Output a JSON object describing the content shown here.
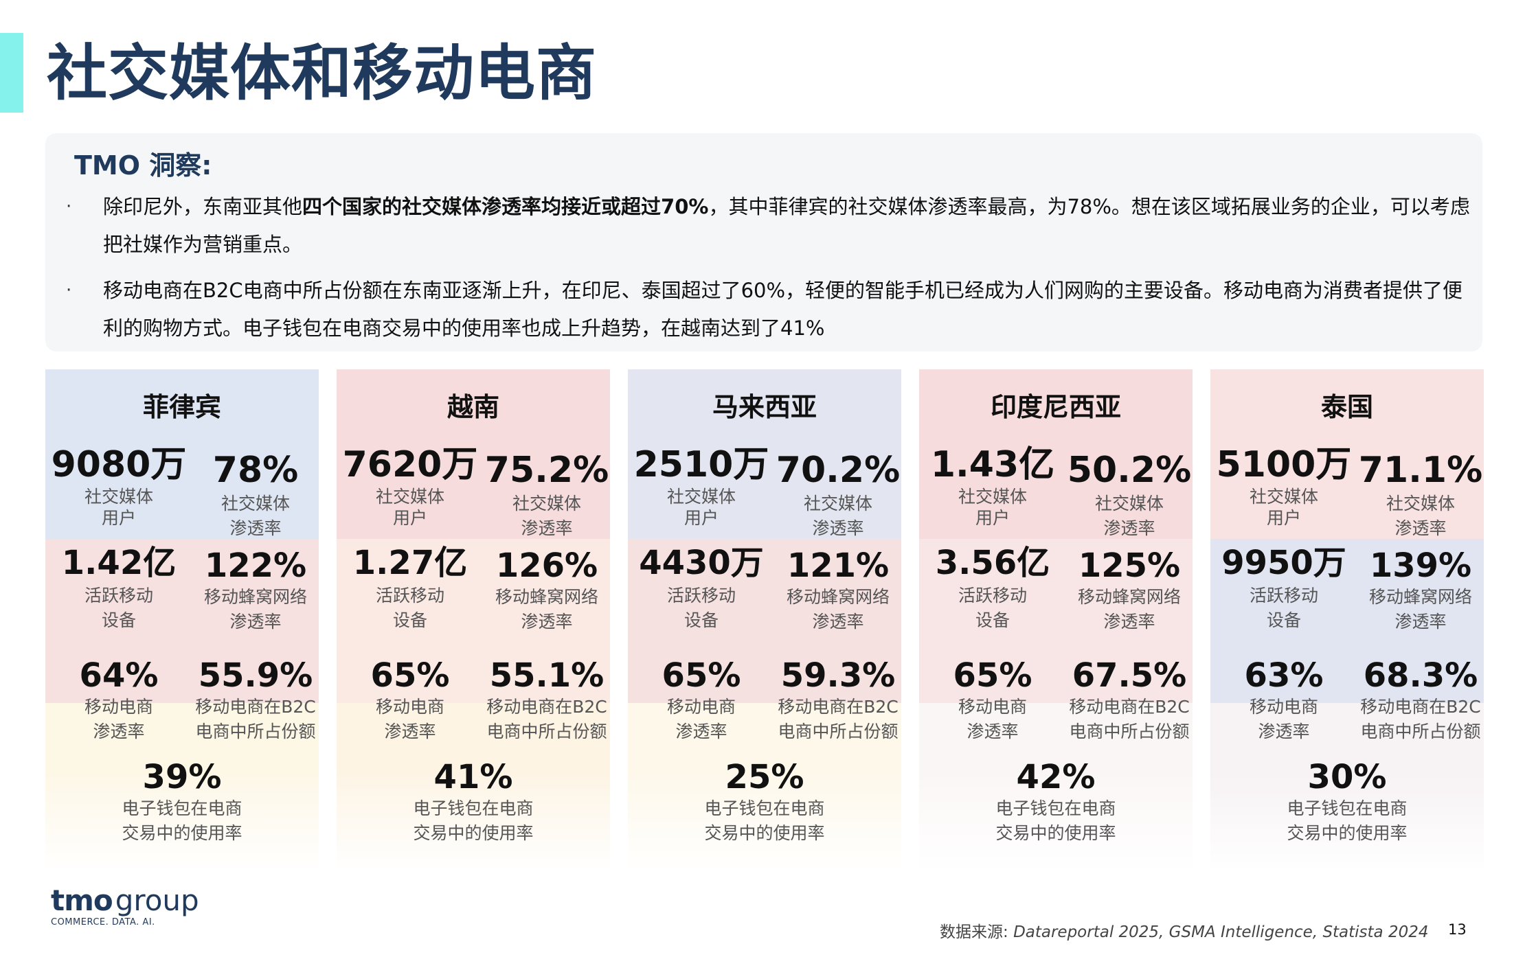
{
  "page": {
    "title": "社交媒体和移动电商",
    "page_number": "13",
    "accent_color": "#86f2ec",
    "title_color": "#1f3a5c"
  },
  "insight": {
    "title": "TMO 洞察:",
    "bullet_marker": "·",
    "bullet1": {
      "part1": "除印尼外，东南亚其他",
      "bold": "四个国家的社交媒体渗透率均接近或超过70%",
      "part2": "，其中菲律宾的社交媒体渗透率最高，为78%。想在该区域拓展业务的企业，可以考虑把社媒作为营销重点。"
    },
    "bullet2": "移动电商在B2C电商中所占份额在东南亚逐渐上升，在印尼、泰国超过了60%，轻便的智能手机已经成为人们网购的主要设备。移动电商为消费者提供了便利的购物方式。电子钱包在电商交易中的使用率也成上升趋势，在越南达到了41%"
  },
  "labels": {
    "social_users_l1": "社交媒体",
    "social_users_l2": "用户",
    "social_pen_l1": "社交媒体",
    "social_pen_l2": "渗透率",
    "devices_l1": "活跃移动",
    "devices_l2": "设备",
    "cellular_l1": "移动蜂窝网络",
    "cellular_l2": "渗透率",
    "mcommerce_l1": "移动电商",
    "mcommerce_l2": "渗透率",
    "b2c_l1": "移动电商在B2C",
    "b2c_l2": "电商中所占份额",
    "ewallet_l1": "电子钱包在电商",
    "ewallet_l2": "交易中的使用率"
  },
  "countries": [
    {
      "name": "菲律宾",
      "social_users": "9080万",
      "social_penetration": "78%",
      "active_devices": "1.42亿",
      "cellular_penetration": "122%",
      "mcommerce_penetration": "64%",
      "b2c_share": "55.9%",
      "ewallet_usage": "39%",
      "flag_colors": [
        "#dfe6f3",
        "#f6e0e0",
        "#fdf7e6"
      ]
    },
    {
      "name": "越南",
      "social_users": "7620万",
      "social_penetration": "75.2%",
      "active_devices": "1.27亿",
      "cellular_penetration": "126%",
      "mcommerce_penetration": "65%",
      "b2c_share": "55.1%",
      "ewallet_usage": "41%",
      "flag_colors": [
        "#f6dcdc",
        "#fbe9e4",
        "#fdf4e4"
      ]
    },
    {
      "name": "马来西亚",
      "social_users": "2510万",
      "social_penetration": "70.2%",
      "active_devices": "4430万",
      "cellular_penetration": "121%",
      "mcommerce_penetration": "65%",
      "b2c_share": "59.3%",
      "ewallet_usage": "25%",
      "flag_colors": [
        "#e3e6f1",
        "#f6e1e1",
        "#fdf8ea"
      ]
    },
    {
      "name": "印度尼西亚",
      "social_users": "1.43亿",
      "social_penetration": "50.2%",
      "active_devices": "3.56亿",
      "cellular_penetration": "125%",
      "mcommerce_penetration": "65%",
      "b2c_share": "67.5%",
      "ewallet_usage": "42%",
      "flag_colors": [
        "#f6dcdc",
        "#f8e6e6",
        "#fbf6f6"
      ]
    },
    {
      "name": "泰国",
      "social_users": "5100万",
      "social_penetration": "71.1%",
      "active_devices": "9950万",
      "cellular_penetration": "139%",
      "mcommerce_penetration": "63%",
      "b2c_share": "68.3%",
      "ewallet_usage": "30%",
      "flag_colors": [
        "#f8e2e2",
        "#e1e5f1",
        "#f7f2f4"
      ]
    }
  ],
  "footer": {
    "logo_main": "tmo",
    "logo_group": "group",
    "logo_tagline": "COMMERCE. DATA. AI.",
    "source_prefix": "数据来源: ",
    "source_text": "Datareportal 2025, GSMA Intelligence, Statista 2024"
  }
}
